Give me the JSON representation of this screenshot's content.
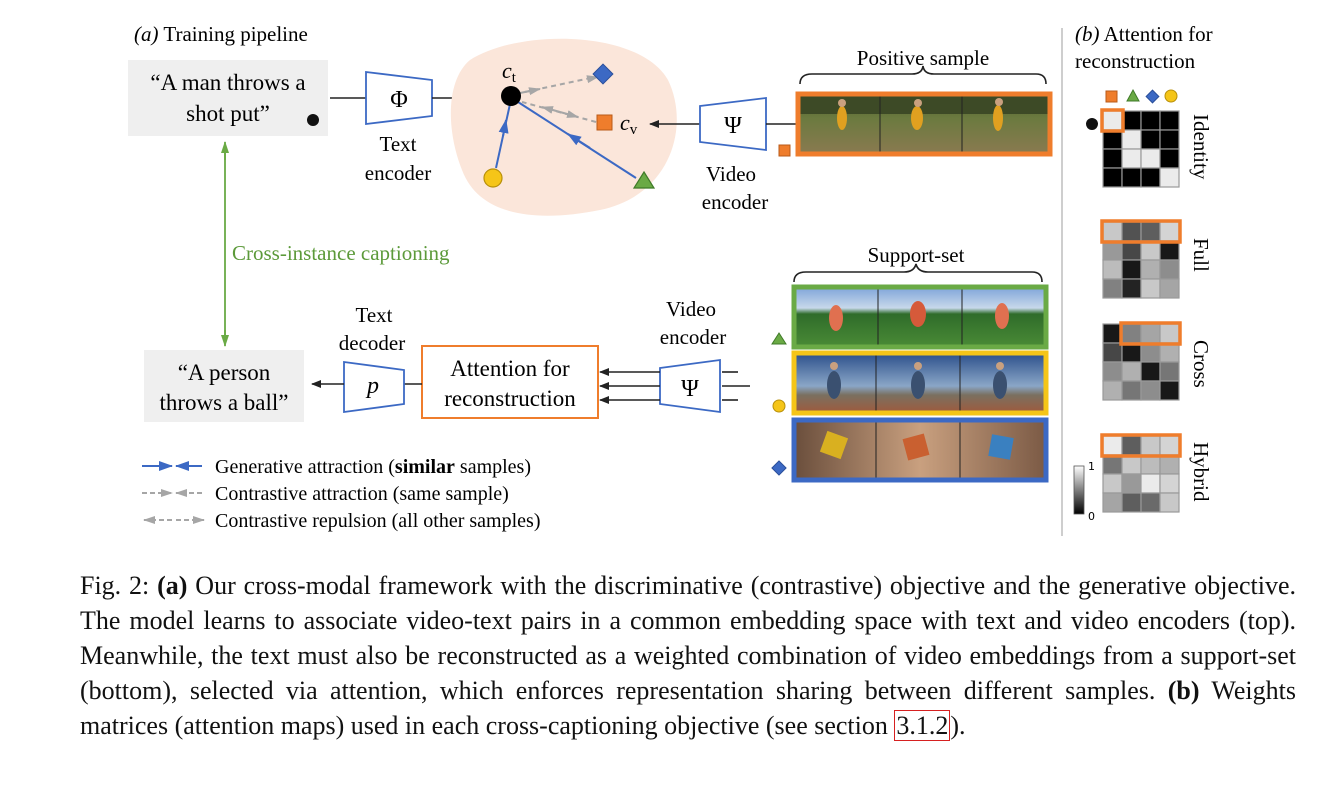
{
  "panel_a": {
    "label": "(a)",
    "title": "Training pipeline",
    "input_caption_line1": "“A man throws a",
    "input_caption_line2": "shot put”",
    "text_encoder_symbol": "Φ",
    "text_encoder_line1": "Text",
    "text_encoder_line2": "encoder",
    "ct_symbol": "c",
    "ct_sub": "t",
    "cv_symbol": "c",
    "cv_sub": "v",
    "video_encoder_symbol": "Ψ",
    "video_encoder_line1": "Video",
    "video_encoder_line2": "encoder",
    "positive_sample_label": "Positive sample",
    "cross_instance_label": "Cross-instance captioning",
    "support_set_label": "Support-set",
    "video_encoder2_line1": "Video",
    "video_encoder2_line2": "encoder",
    "video_encoder2_symbol": "Ψ",
    "attention_line1": "Attention for",
    "attention_line2": "reconstruction",
    "text_decoder_line1": "Text",
    "text_decoder_line2": "decoder",
    "text_decoder_symbol": "p",
    "output_caption_line1": "“A person",
    "output_caption_line2": "throws a ball”",
    "legend": {
      "generative_prefix": "Generative attraction (",
      "generative_bold": "similar",
      "generative_suffix": " samples)",
      "contrastive_attraction": "Contrastive attraction (same sample)",
      "contrastive_repulsion": "Contrastive repulsion (all other samples)"
    }
  },
  "panel_b": {
    "label": "(b)",
    "title_line1": "Attention for",
    "title_line2": "reconstruction",
    "matrix_labels": [
      "Identity",
      "Full",
      "Cross",
      "Hybrid"
    ],
    "colorbar_max": "1",
    "colorbar_min": "0"
  },
  "colors": {
    "orange": "#ef7d2c",
    "green": "#6aaa45",
    "blue": "#3c69c4",
    "yellow": "#f5c518",
    "gray_arrow": "#a6a6a6",
    "blob": "#fbe6da",
    "caption_box": "#efefef",
    "green_text": "#5c9a3a"
  },
  "caption": {
    "fig_label": "Fig. 2:",
    "a_label": "(a)",
    "text_a": " Our cross-modal framework with the discriminative (contrastive) objective and the generative objective. The model learns to associate video-text pairs in a common embedding space with text and video encoders (top). Meanwhile, the text must also be reconstructed as a weighted combination of video embeddings from a support-set (bottom), selected via attention, which enforces representation sharing between different samples. ",
    "b_label": "(b)",
    "text_b": " Weights matrices (attention maps) used in each cross-captioning objective (see section ",
    "ref": "3.1.2",
    "text_end": ")."
  }
}
